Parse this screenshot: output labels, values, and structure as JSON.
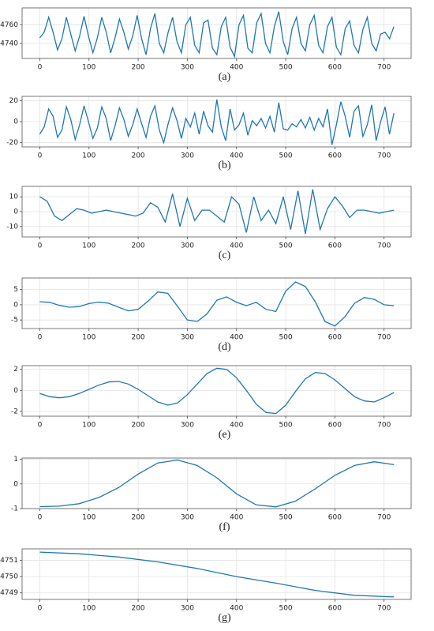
{
  "chart_data": [
    {
      "type": "line",
      "caption": "(a)",
      "color": "#1f77b4",
      "grid": true,
      "xlim": [
        -36,
        755
      ],
      "ylim": [
        4724,
        4778
      ],
      "xticks": [
        0,
        100,
        200,
        300,
        400,
        500,
        600,
        700
      ],
      "yticks": [
        4740,
        4760
      ],
      "x": [
        0,
        9,
        18,
        27,
        36,
        45,
        54,
        63,
        72,
        81,
        90,
        99,
        108,
        117,
        126,
        135,
        144,
        153,
        162,
        171,
        180,
        189,
        198,
        207,
        216,
        225,
        234,
        243,
        252,
        261,
        270,
        279,
        288,
        297,
        306,
        315,
        324,
        333,
        342,
        351,
        360,
        369,
        378,
        387,
        396,
        405,
        414,
        423,
        432,
        441,
        450,
        459,
        468,
        477,
        486,
        495,
        504,
        513,
        522,
        531,
        540,
        549,
        558,
        567,
        576,
        585,
        594,
        603,
        612,
        621,
        630,
        639,
        648,
        657,
        666,
        675,
        684,
        693,
        702,
        711,
        720
      ],
      "values": [
        4746,
        4752,
        4768,
        4752,
        4733,
        4745,
        4768,
        4750,
        4732,
        4748,
        4769,
        4748,
        4730,
        4746,
        4768,
        4752,
        4730,
        4746,
        4766,
        4752,
        4734,
        4748,
        4770,
        4745,
        4728,
        4756,
        4772,
        4740,
        4730,
        4752,
        4768,
        4742,
        4730,
        4760,
        4768,
        4738,
        4730,
        4762,
        4765,
        4735,
        4728,
        4758,
        4768,
        4736,
        4726,
        4760,
        4770,
        4735,
        4730,
        4762,
        4772,
        4740,
        4730,
        4758,
        4774,
        4742,
        4728,
        4756,
        4768,
        4740,
        4732,
        4760,
        4770,
        4738,
        4730,
        4758,
        4768,
        4736,
        4728,
        4756,
        4764,
        4738,
        4730,
        4755,
        4768,
        4740,
        4732,
        4750,
        4752,
        4745,
        4758
      ]
    },
    {
      "type": "line",
      "caption": "(b)",
      "color": "#1f77b4",
      "grid": true,
      "xlim": [
        -36,
        755
      ],
      "ylim": [
        -24,
        24
      ],
      "xticks": [
        0,
        100,
        200,
        300,
        400,
        500,
        600,
        700
      ],
      "yticks": [
        -20,
        0,
        20
      ],
      "x": [
        0,
        9,
        18,
        27,
        36,
        45,
        54,
        63,
        72,
        81,
        90,
        99,
        108,
        117,
        126,
        135,
        144,
        153,
        162,
        171,
        180,
        189,
        198,
        207,
        216,
        225,
        234,
        243,
        252,
        261,
        270,
        279,
        288,
        297,
        306,
        315,
        324,
        333,
        342,
        351,
        360,
        369,
        378,
        387,
        396,
        405,
        414,
        423,
        432,
        441,
        450,
        459,
        468,
        477,
        486,
        495,
        504,
        513,
        522,
        531,
        540,
        549,
        558,
        567,
        576,
        585,
        594,
        603,
        612,
        621,
        630,
        639,
        648,
        657,
        666,
        675,
        684,
        693,
        702,
        711,
        720
      ],
      "values": [
        -12,
        -5,
        12,
        5,
        -15,
        -8,
        14,
        2,
        -17,
        -3,
        15,
        0,
        -16,
        -6,
        14,
        3,
        -18,
        -4,
        13,
        2,
        -14,
        -3,
        12,
        -2,
        -15,
        5,
        15,
        -8,
        -20,
        -2,
        13,
        1,
        -16,
        3,
        -5,
        8,
        -12,
        10,
        -4,
        -10,
        21,
        -5,
        -18,
        12,
        -8,
        -3,
        8,
        -13,
        1,
        -4,
        3,
        -6,
        5,
        -10,
        18,
        -7,
        -8,
        -2,
        -5,
        2,
        -6,
        4,
        -8,
        3,
        -5,
        12,
        -22,
        -3,
        19,
        5,
        -15,
        10,
        15,
        -14,
        -3,
        16,
        -18,
        0,
        14,
        -12,
        8
      ]
    },
    {
      "type": "line",
      "caption": "(c)",
      "color": "#1f77b4",
      "grid": true,
      "xlim": [
        -36,
        755
      ],
      "ylim": [
        -17,
        17
      ],
      "xticks": [
        0,
        100,
        200,
        300,
        400,
        500,
        600,
        700
      ],
      "yticks": [
        -10,
        0,
        10
      ],
      "x": [
        0,
        15,
        30,
        45,
        60,
        75,
        90,
        105,
        120,
        135,
        150,
        165,
        180,
        195,
        210,
        225,
        240,
        255,
        270,
        285,
        300,
        315,
        330,
        345,
        360,
        375,
        390,
        405,
        420,
        435,
        450,
        465,
        480,
        495,
        510,
        525,
        540,
        555,
        570,
        585,
        600,
        615,
        630,
        645,
        660,
        675,
        690,
        705,
        720
      ],
      "values": [
        10,
        7,
        -3,
        -6,
        -2,
        2,
        1,
        -1,
        0,
        1,
        0,
        -1,
        -2,
        -3,
        -1,
        6,
        3,
        -7,
        12,
        -10,
        9,
        -6,
        1,
        1,
        -3,
        -7,
        10,
        5,
        -14,
        10,
        -6,
        1,
        -8,
        10,
        -12,
        14,
        -15,
        15,
        -12,
        2,
        10,
        4,
        -4,
        1,
        1,
        0,
        -1,
        0,
        1
      ]
    },
    {
      "type": "line",
      "caption": "(d)",
      "color": "#1f77b4",
      "grid": true,
      "xlim": [
        -36,
        755
      ],
      "ylim": [
        -7.8,
        8.8
      ],
      "xticks": [
        0,
        100,
        200,
        300,
        400,
        500,
        600,
        700
      ],
      "yticks": [
        -5,
        0,
        5
      ],
      "x": [
        0,
        20,
        40,
        60,
        80,
        100,
        120,
        140,
        160,
        180,
        200,
        220,
        240,
        260,
        280,
        300,
        320,
        340,
        360,
        380,
        400,
        420,
        440,
        460,
        480,
        500,
        520,
        540,
        560,
        580,
        600,
        620,
        640,
        660,
        680,
        700,
        720
      ],
      "values": [
        1,
        0.8,
        -0.2,
        -0.8,
        -0.6,
        0.4,
        0.9,
        0.5,
        -0.8,
        -2,
        -1.5,
        1.2,
        4.2,
        3.8,
        -0.5,
        -5,
        -5.5,
        -3,
        1.5,
        2.6,
        0.8,
        -0.3,
        0.8,
        -1.5,
        -2.2,
        4.5,
        7.5,
        6,
        1,
        -5.5,
        -7,
        -4,
        0.5,
        2.4,
        1.8,
        0,
        -0.3
      ]
    },
    {
      "type": "line",
      "caption": "(e)",
      "color": "#1f77b4",
      "grid": true,
      "xlim": [
        -36,
        755
      ],
      "ylim": [
        -2.45,
        2.35
      ],
      "xticks": [
        0,
        100,
        200,
        300,
        400,
        500,
        600,
        700
      ],
      "yticks": [
        -2,
        0,
        2
      ],
      "x": [
        0,
        20,
        40,
        60,
        80,
        100,
        120,
        140,
        160,
        180,
        200,
        220,
        240,
        260,
        280,
        300,
        320,
        340,
        360,
        380,
        400,
        420,
        440,
        460,
        480,
        500,
        520,
        540,
        560,
        580,
        600,
        620,
        640,
        660,
        680,
        700,
        720
      ],
      "values": [
        -0.3,
        -0.6,
        -0.7,
        -0.6,
        -0.3,
        0.1,
        0.5,
        0.8,
        0.85,
        0.6,
        0.1,
        -0.5,
        -1.1,
        -1.4,
        -1.2,
        -0.4,
        0.6,
        1.6,
        2.1,
        2.0,
        1.2,
        0,
        -1.3,
        -2.1,
        -2.2,
        -1.4,
        -0.1,
        1.1,
        1.7,
        1.6,
        1.0,
        0.2,
        -0.6,
        -1.0,
        -1.1,
        -0.7,
        -0.2
      ]
    },
    {
      "type": "line",
      "caption": "(f)",
      "color": "#1f77b4",
      "grid": true,
      "xlim": [
        -36,
        755
      ],
      "ylim": [
        -1.0,
        1.05
      ],
      "xticks": [
        0,
        100,
        200,
        300,
        400,
        500,
        600,
        700
      ],
      "yticks": [
        -1,
        0,
        1
      ],
      "x": [
        0,
        40,
        80,
        120,
        160,
        200,
        240,
        280,
        320,
        360,
        400,
        440,
        480,
        520,
        560,
        600,
        640,
        680,
        720
      ],
      "values": [
        -0.92,
        -0.9,
        -0.8,
        -0.55,
        -0.15,
        0.4,
        0.85,
        0.97,
        0.75,
        0.25,
        -0.4,
        -0.85,
        -0.93,
        -0.7,
        -0.2,
        0.35,
        0.75,
        0.9,
        0.78
      ]
    },
    {
      "type": "line",
      "caption": "(g)",
      "color": "#1f77b4",
      "grid": true,
      "xlim": [
        -36,
        755
      ],
      "ylim": [
        4748.6,
        4751.7
      ],
      "xticks": [
        0,
        100,
        200,
        300,
        400,
        500,
        600,
        700
      ],
      "yticks": [
        4749,
        4750,
        4751
      ],
      "x": [
        0,
        80,
        160,
        240,
        320,
        400,
        480,
        560,
        640,
        720
      ],
      "values": [
        4751.5,
        4751.4,
        4751.2,
        4750.9,
        4750.5,
        4750.0,
        4749.6,
        4749.15,
        4748.85,
        4748.75
      ]
    }
  ]
}
